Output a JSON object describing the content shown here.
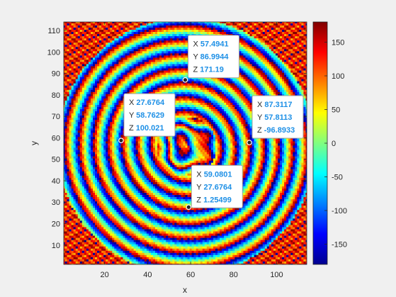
{
  "chart_data": {
    "type": "heatmap",
    "title": "",
    "xlabel": "x",
    "ylabel": "y",
    "xlim": [
      1,
      114
    ],
    "ylim": [
      1,
      114
    ],
    "x_ticks": [
      20,
      40,
      60,
      80,
      100
    ],
    "y_ticks": [
      10,
      20,
      30,
      40,
      50,
      60,
      70,
      80,
      90,
      100,
      110
    ],
    "colorbar": {
      "colormap": "jet",
      "clim": [
        -180,
        180
      ],
      "ticks": [
        150,
        100,
        50,
        0,
        -50,
        -100,
        -150
      ]
    },
    "grid": false,
    "datatips": [
      {
        "x": "57.4941",
        "y": "86.9944",
        "z": "171.19"
      },
      {
        "x": "27.6764",
        "y": "58.7629",
        "z": "100.021"
      },
      {
        "x": "87.3117",
        "y": "57.8113",
        "z": "-96.8933"
      },
      {
        "x": "59.0801",
        "y": "27.6764",
        "z": "1.25499"
      }
    ],
    "datatip_prefixes": {
      "x": "X",
      "y": "Y",
      "z": "Z"
    }
  }
}
